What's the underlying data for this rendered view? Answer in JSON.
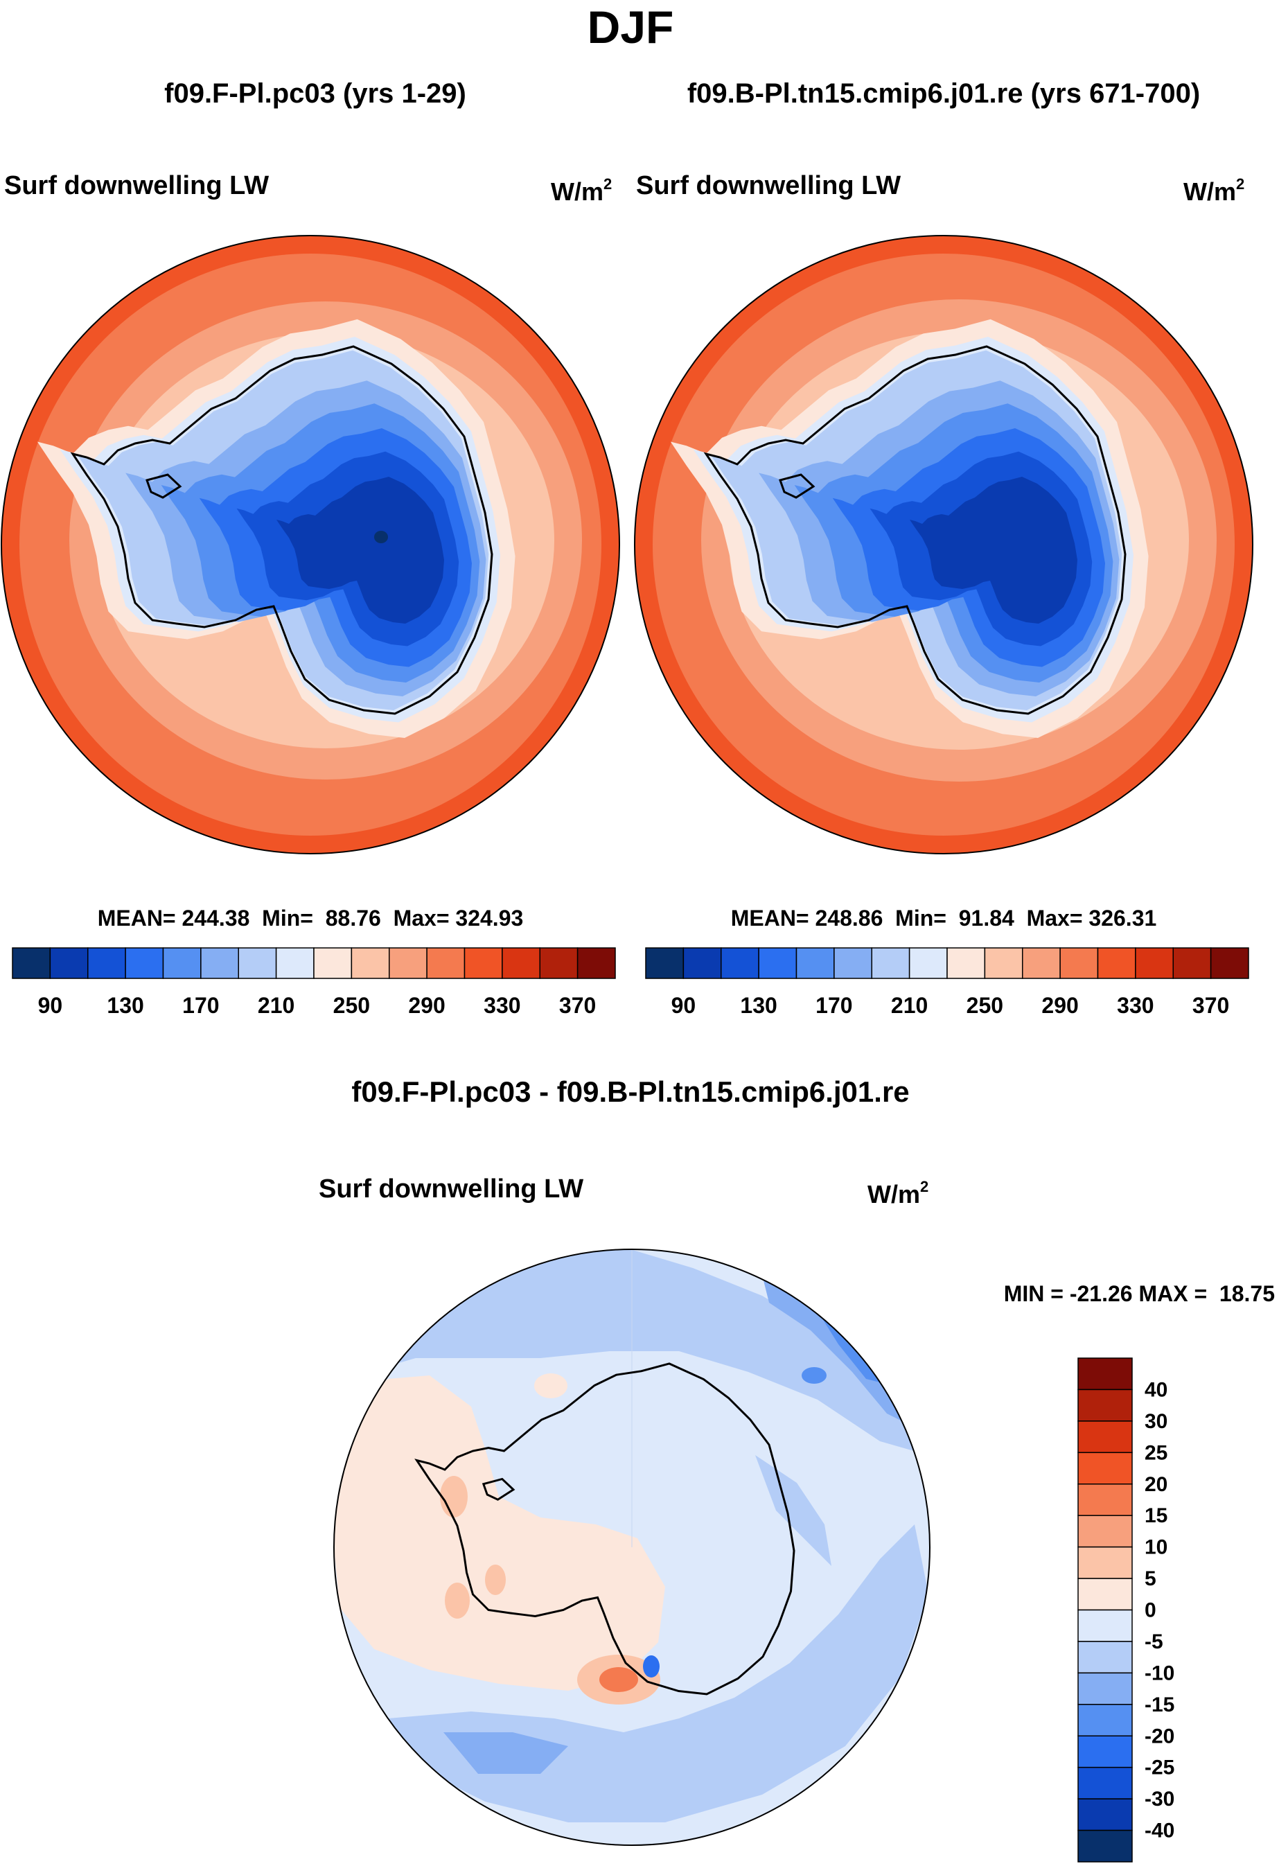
{
  "page": {
    "title": "DJF",
    "diff_title": "f09.F-Pl.pc03 - f09.B-Pl.tn15.cmip6.j01.re"
  },
  "panels": [
    {
      "case_title": "f09.F-Pl.pc03 (yrs 1-29)",
      "variable": "Surf downwelling LW",
      "units": "W/m",
      "units_exp": "2",
      "stats": {
        "mean": "244.38",
        "min": "88.76",
        "max": "324.93"
      },
      "stats_text": "MEAN= 244.38  Min=  88.76  Max= 324.93",
      "colorbar_ticks": [
        "90",
        "130",
        "170",
        "210",
        "250",
        "290",
        "330",
        "370"
      ]
    },
    {
      "case_title": "f09.B-Pl.tn15.cmip6.j01.re (yrs 671-700)",
      "variable": "Surf downwelling LW",
      "units": "W/m",
      "units_exp": "2",
      "stats": {
        "mean": "248.86",
        "min": "91.84",
        "max": "326.31"
      },
      "stats_text": "MEAN= 248.86  Min=  91.84  Max= 326.31",
      "colorbar_ticks": [
        "90",
        "130",
        "170",
        "210",
        "250",
        "290",
        "330",
        "370"
      ]
    }
  ],
  "difference": {
    "variable": "Surf downwelling LW",
    "units": "W/m",
    "units_exp": "2",
    "stats": {
      "min": "-21.26",
      "max": "18.75"
    },
    "stats_text": "MIN = -21.26 MAX =  18.75",
    "colorbar_ticks": [
      "40",
      "30",
      "25",
      "20",
      "15",
      "10",
      "5",
      "0",
      "-5",
      "-10",
      "-15",
      "-20",
      "-25",
      "-30",
      "-40"
    ]
  },
  "colors": {
    "abs_scale": [
      "#08306b",
      "#0a3bb0",
      "#1452d6",
      "#2b6ff0",
      "#5590f2",
      "#85aef3",
      "#b4cdf7",
      "#dde9fb",
      "#fce7dc",
      "#fbc4a8",
      "#f7a07d",
      "#f47a4f",
      "#f05426",
      "#d93512",
      "#b0210b",
      "#7d0c06"
    ],
    "diff_scale": [
      "#7d0c06",
      "#b0210b",
      "#d93512",
      "#f05426",
      "#f47a4f",
      "#f7a07d",
      "#fbc4a8",
      "#fce7dc",
      "#dde9fb",
      "#b4cdf7",
      "#85aef3",
      "#5590f2",
      "#2b6ff0",
      "#1452d6",
      "#0a3bb0",
      "#08306b"
    ]
  },
  "icons": {
    "map": "antarctic-polar-projection"
  }
}
